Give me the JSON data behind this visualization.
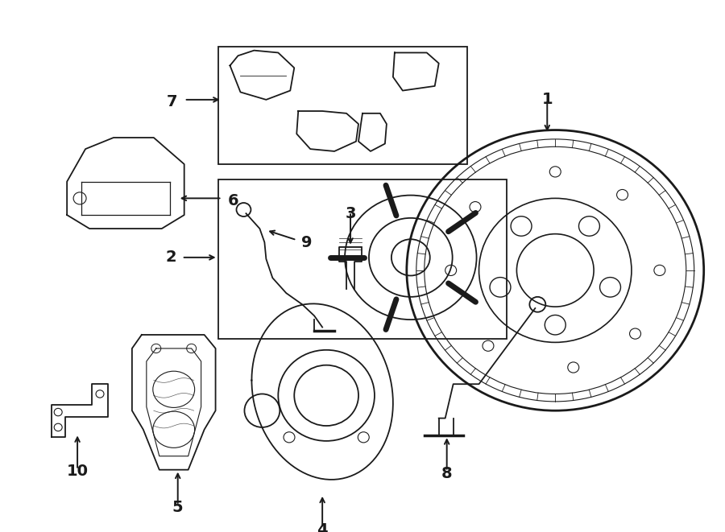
{
  "bg_color": "#ffffff",
  "line_color": "#1a1a1a",
  "lw": 1.3,
  "fig_width": 9.0,
  "fig_height": 6.61,
  "dpi": 100,
  "xlim": [
    0,
    900
  ],
  "ylim": [
    0,
    661
  ]
}
